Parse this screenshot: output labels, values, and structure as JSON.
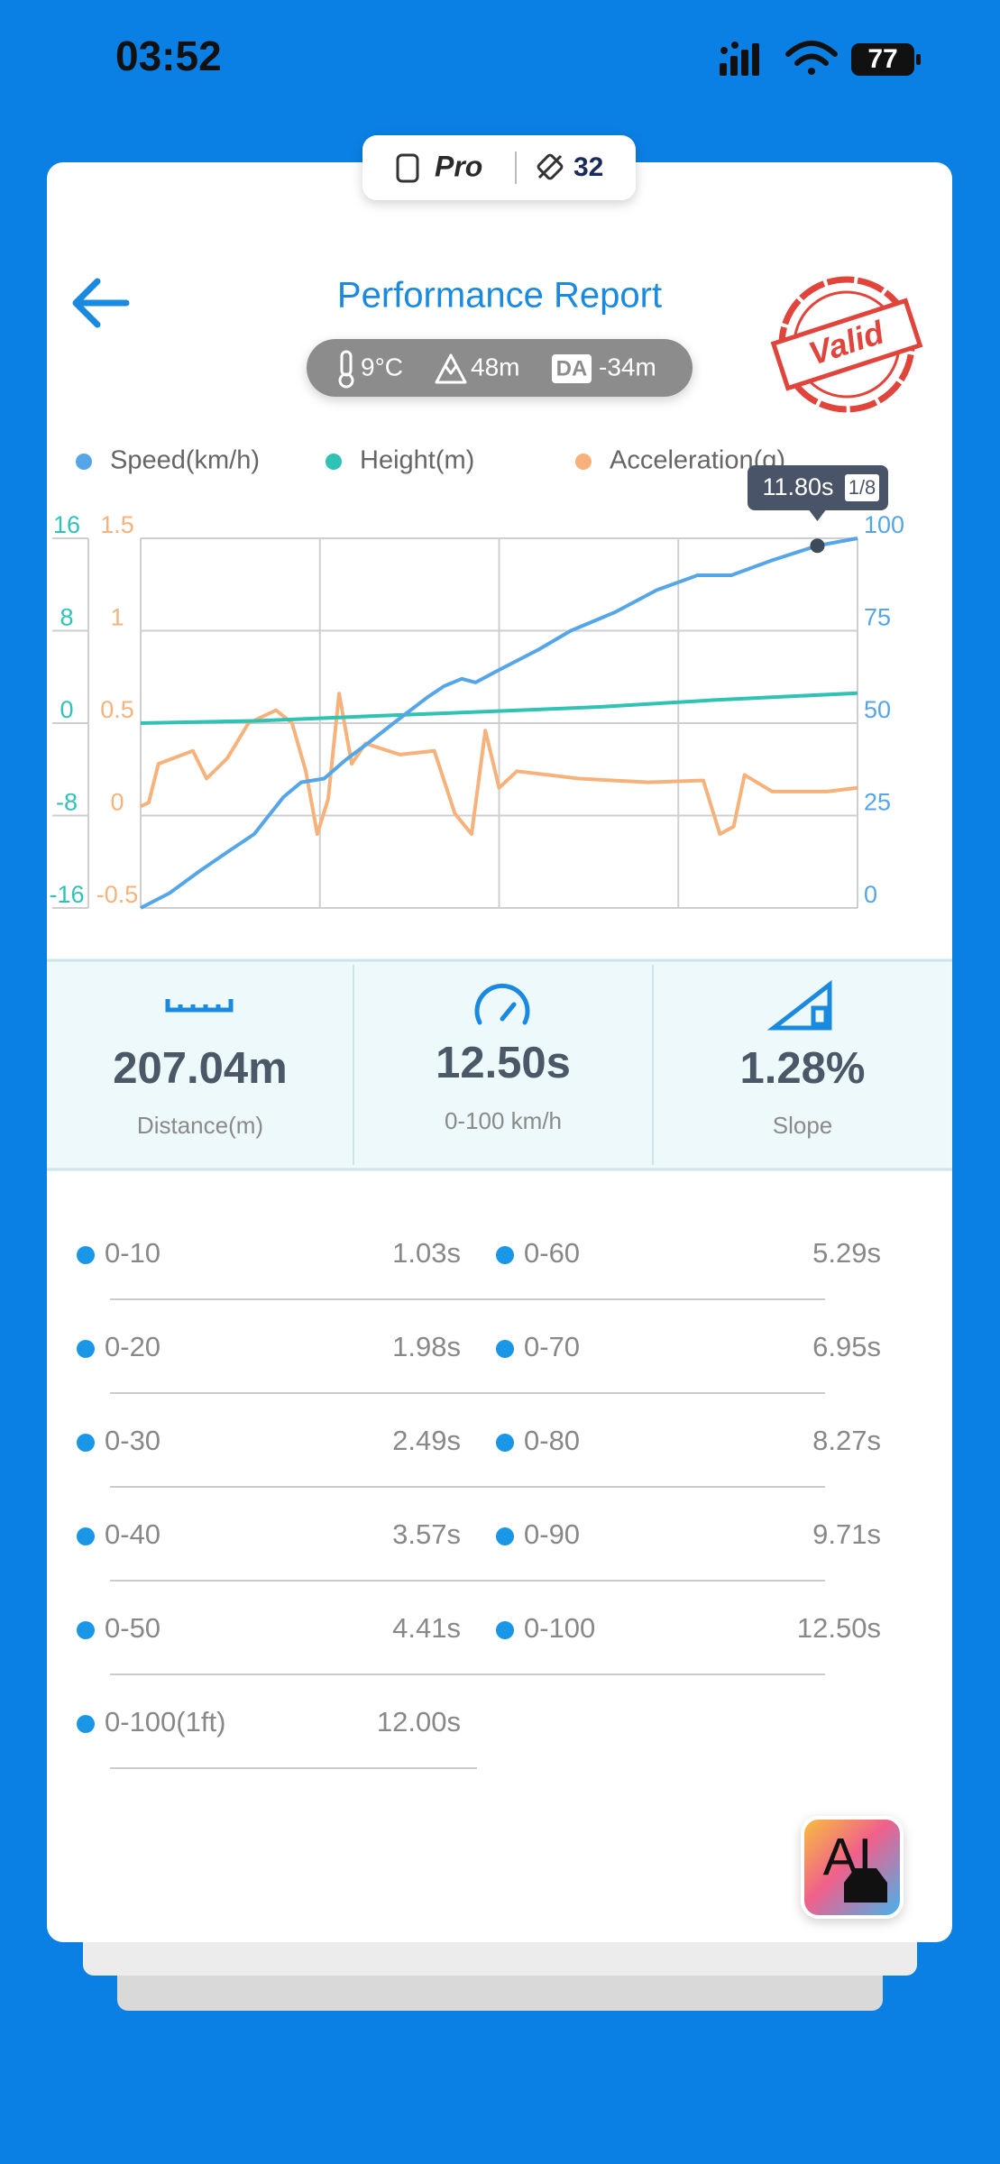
{
  "status_bar": {
    "time": "03:52",
    "battery": "77"
  },
  "device_pill": {
    "mode": "Pro",
    "count": "32"
  },
  "header": {
    "title": "Performance Report",
    "temperature": "9°C",
    "altitude": "48m",
    "da_label": "DA",
    "density_altitude": "-34m",
    "stamp": "Valid"
  },
  "chart_data": {
    "type": "line",
    "xlim": [
      0,
      12.5
    ],
    "xticks": [
      0,
      3.125,
      6.25,
      9.375,
      12.5
    ],
    "ylim": [
      -16,
      16
    ],
    "yticks": [
      -16,
      -8,
      0,
      8,
      16
    ],
    "y3lim": [
      -0.5,
      1.5
    ],
    "y3ticks": [
      -0.5,
      0,
      0.5,
      1,
      1.5
    ],
    "y2lim": [
      0,
      100
    ],
    "y2ticks": [
      0,
      25,
      50,
      75,
      100
    ],
    "grid": true,
    "series": [
      {
        "name": "Speed(km/h)",
        "color": "#55a6e8",
        "axis": "y2",
        "x": [
          0,
          0.5,
          1.03,
          1.5,
          1.98,
          2.49,
          2.8,
          3.2,
          3.57,
          4.0,
          4.41,
          5.0,
          5.29,
          5.6,
          5.84,
          6.2,
          6.95,
          7.5,
          8.27,
          9.0,
          9.71,
          10.3,
          11.0,
          11.8,
          12.5
        ],
        "values": [
          0,
          4,
          10,
          15,
          20,
          30,
          34,
          35,
          40,
          45,
          50,
          57,
          60,
          62,
          61,
          64,
          70,
          75,
          80,
          86,
          90,
          90,
          94,
          98,
          100
        ]
      },
      {
        "name": "Height(m)",
        "color": "#2fc2b5",
        "axis": "y",
        "x": [
          0,
          2,
          4,
          6,
          8,
          10,
          12.5
        ],
        "values": [
          0,
          0.2,
          0.6,
          1.0,
          1.4,
          2.0,
          2.6
        ]
      },
      {
        "name": "Acceleration(g)",
        "color": "#f7b27c",
        "axis": "y3",
        "x": [
          0,
          0.14,
          0.31,
          0.91,
          1.15,
          1.51,
          1.88,
          2.36,
          2.64,
          2.88,
          3.08,
          3.27,
          3.46,
          3.68,
          3.92,
          4.52,
          5.12,
          5.48,
          5.77,
          6.01,
          6.25,
          6.56,
          7.64,
          8.85,
          9.81,
          10.1,
          10.34,
          10.53,
          11.01,
          11.97,
          12.5
        ],
        "values": [
          0.05,
          0.07,
          0.28,
          0.35,
          0.2,
          0.31,
          0.5,
          0.57,
          0.5,
          0.24,
          -0.1,
          0.09,
          0.66,
          0.28,
          0.39,
          0.33,
          0.35,
          0.01,
          -0.1,
          0.46,
          0.15,
          0.24,
          0.2,
          0.18,
          0.19,
          -0.1,
          -0.06,
          0.22,
          0.13,
          0.13,
          0.15
        ]
      }
    ],
    "tooltip": {
      "x": 11.8,
      "label": "11.80s",
      "page": "1/8"
    }
  },
  "stats": [
    {
      "value": "207.04m",
      "label": "Distance(m)"
    },
    {
      "value": "12.50s",
      "label": "0-100 km/h"
    },
    {
      "value": "1.28%",
      "label": "Slope"
    }
  ],
  "splits": [
    {
      "label": "0-10",
      "time": "1.03s"
    },
    {
      "label": "0-20",
      "time": "1.98s"
    },
    {
      "label": "0-30",
      "time": "2.49s"
    },
    {
      "label": "0-40",
      "time": "3.57s"
    },
    {
      "label": "0-50",
      "time": "4.41s"
    },
    {
      "label": "0-60",
      "time": "5.29s"
    },
    {
      "label": "0-70",
      "time": "6.95s"
    },
    {
      "label": "0-80",
      "time": "8.27s"
    },
    {
      "label": "0-90",
      "time": "9.71s"
    },
    {
      "label": "0-100",
      "time": "12.50s"
    },
    {
      "label": "0-100(1ft)",
      "time": "12.00s"
    }
  ],
  "ai_button": "AI"
}
